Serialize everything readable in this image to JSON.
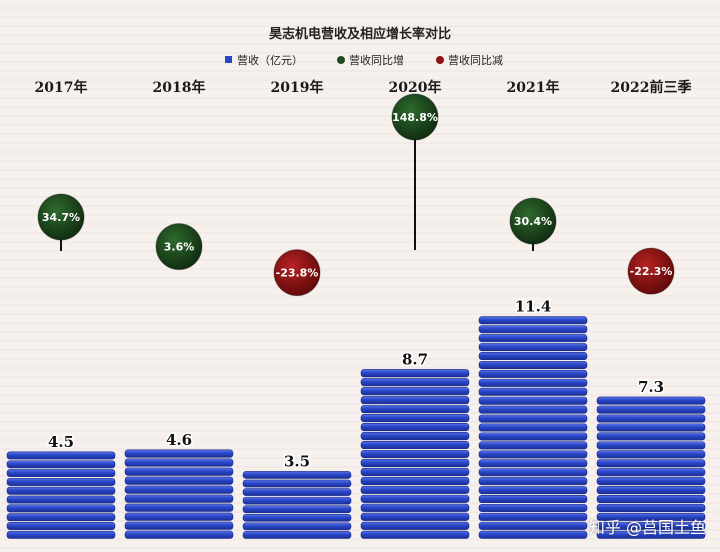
{
  "chart_data": {
    "type": "bar",
    "title": "昊志机电营收及相应增长率对比",
    "categories": [
      "2017年",
      "2018年",
      "2019年",
      "2020年",
      "2021年",
      "2022前三季"
    ],
    "series": [
      {
        "name": "营收（亿元）",
        "type": "bar",
        "values": [
          4.5,
          4.6,
          3.5,
          8.7,
          11.4,
          7.3
        ],
        "color": "#2a46c8"
      },
      {
        "name": "营收同比",
        "type": "bubble",
        "values": [
          34.7,
          3.6,
          -23.8,
          148.8,
          30.4,
          -22.3
        ],
        "value_labels": [
          "34.7%",
          "3.6%",
          "-23.8%",
          "148.8%",
          "30.4%",
          "-22.3%"
        ]
      }
    ],
    "legend": [
      {
        "label": "营收（亿元）",
        "color": "#2a46c8",
        "shape": "square"
      },
      {
        "label": "营收同比增",
        "color": "#1f4a1f",
        "shape": "circle"
      },
      {
        "label": "营收同比减",
        "color": "#8b1212",
        "shape": "circle"
      }
    ],
    "legend_position": "top",
    "colors": {
      "increase": "#1a3d1a",
      "decrease": "#8b1212",
      "bar": "#2a46c8"
    }
  },
  "watermark": "知乎 @莒国土鱼"
}
